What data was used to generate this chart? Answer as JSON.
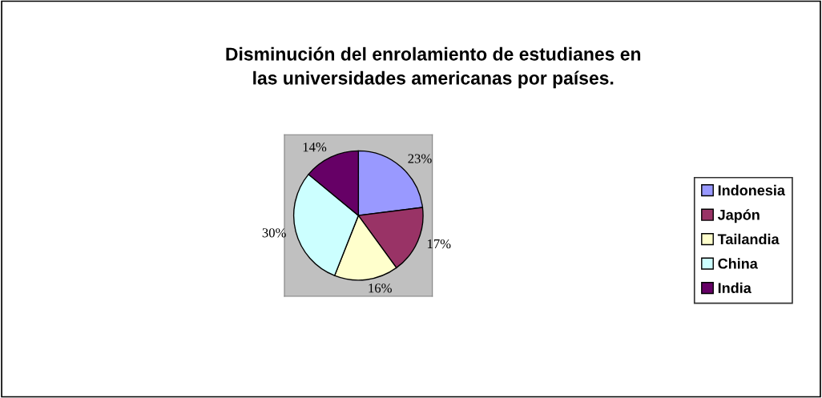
{
  "chart_data": {
    "type": "pie",
    "title": "Disminución del enrolamiento de estudianes en\nlas universidades americanas por países.",
    "categories": [
      "Indonesia",
      "Japón",
      "Tailandia",
      "China",
      "India"
    ],
    "values": [
      23,
      17,
      16,
      30,
      14
    ],
    "colors": [
      "#9999ff",
      "#993366",
      "#ffffcc",
      "#ccffff",
      "#660066"
    ],
    "value_labels": [
      "23%",
      "17%",
      "16%",
      "30%",
      "14%"
    ],
    "legend": "right"
  }
}
